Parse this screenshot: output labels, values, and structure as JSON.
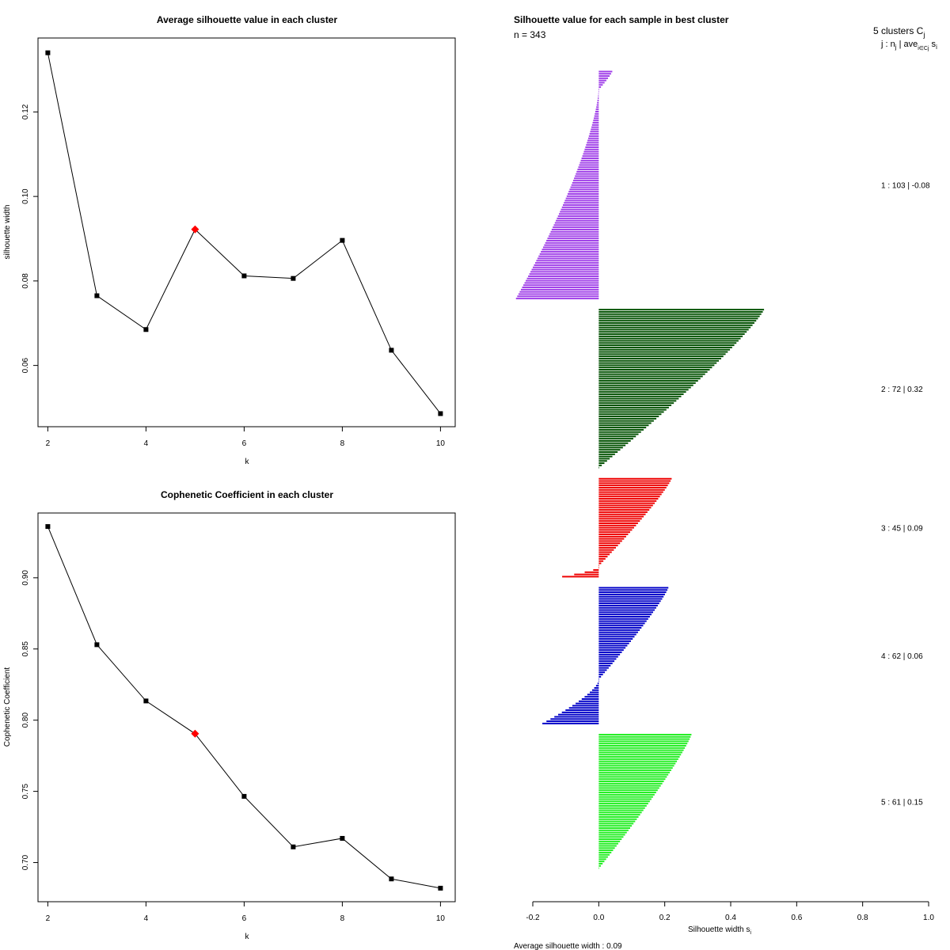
{
  "chart_data": [
    {
      "type": "line",
      "title": "Average silhouette value in each cluster",
      "xlabel": "k",
      "ylabel": "silhouette width",
      "x": [
        2,
        3,
        4,
        5,
        6,
        7,
        8,
        9,
        10
      ],
      "y": [
        0.134,
        0.0765,
        0.0685,
        0.0922,
        0.0812,
        0.0806,
        0.0896,
        0.0636,
        0.0486
      ],
      "highlight_k": 5,
      "highlight_color": "#ff0000",
      "xlim": [
        1.8,
        10.3
      ],
      "ylim": [
        0.0455,
        0.1375
      ],
      "xticks": [
        2,
        4,
        6,
        8,
        10
      ],
      "xtick_labels": [
        "2",
        "4",
        "6",
        "8",
        "10"
      ],
      "yticks": [
        0.06,
        0.08,
        0.1,
        0.12
      ],
      "ytick_labels": [
        "0.06",
        "0.08",
        "0.10",
        "0.12"
      ]
    },
    {
      "type": "line",
      "title": "Cophenetic Coefficient in each cluster",
      "xlabel": "k",
      "ylabel": "Cophenetic Coefficient",
      "x": [
        2,
        3,
        4,
        5,
        6,
        7,
        8,
        9,
        10
      ],
      "y": [
        0.936,
        0.853,
        0.8135,
        0.7905,
        0.7465,
        0.711,
        0.717,
        0.6885,
        0.682
      ],
      "highlight_k": 5,
      "highlight_color": "#ff0000",
      "xlim": [
        1.8,
        10.3
      ],
      "ylim": [
        0.6725,
        0.9455
      ],
      "xticks": [
        2,
        4,
        6,
        8,
        10
      ],
      "xtick_labels": [
        "2",
        "4",
        "6",
        "8",
        "10"
      ],
      "yticks": [
        0.7,
        0.75,
        0.8,
        0.85,
        0.9
      ],
      "ytick_labels": [
        "0.70",
        "0.75",
        "0.80",
        "0.85",
        "0.90"
      ]
    },
    {
      "type": "silhouette",
      "title": "Silhouette value for each sample in best cluster",
      "n_label": "n = 343",
      "legend_title": "5 clusters C",
      "legend_title_sub": "j",
      "legend_header": "j : n",
      "legend_header_sub": "j",
      "legend_header_rest": " | ave",
      "legend_header_sub2": "i∈Cj",
      "legend_header_end": " s",
      "legend_header_sub3": "i",
      "xlabel": "Silhouette width s",
      "xlabel_sub": "i",
      "footer": "Average silhouette width :  0.09",
      "xlim": [
        -0.2,
        1.0
      ],
      "xticks": [
        -0.2,
        0.0,
        0.2,
        0.4,
        0.6,
        0.8,
        1.0
      ],
      "xtick_labels": [
        "-0.2",
        "0.0",
        "0.2",
        "0.4",
        "0.6",
        "0.8",
        "1.0"
      ],
      "clusters": [
        {
          "id": 1,
          "n": 103,
          "avg": -0.08,
          "color": "#a040e8",
          "max": 0.04,
          "min": -0.25,
          "n_pos": 9,
          "label": "1 :  103  |  -0.08"
        },
        {
          "id": 2,
          "n": 72,
          "avg": 0.32,
          "color": "#005000",
          "max": 0.5,
          "min": 0.0,
          "n_pos": 72,
          "label": "2 :  72  |  0.32"
        },
        {
          "id": 3,
          "n": 45,
          "avg": 0.09,
          "color": "#ee0000",
          "max": 0.22,
          "min": -0.11,
          "n_pos": 40,
          "label": "3 :  45  |  0.09"
        },
        {
          "id": 4,
          "n": 62,
          "avg": 0.06,
          "color": "#0000c8",
          "max": 0.21,
          "min": -0.17,
          "n_pos": 42,
          "label": "4 :  62  |  0.06"
        },
        {
          "id": 5,
          "n": 61,
          "avg": 0.15,
          "color": "#22ee22",
          "max": 0.28,
          "min": 0.0,
          "n_pos": 61,
          "label": "5 :  61  |  0.15"
        }
      ]
    }
  ]
}
